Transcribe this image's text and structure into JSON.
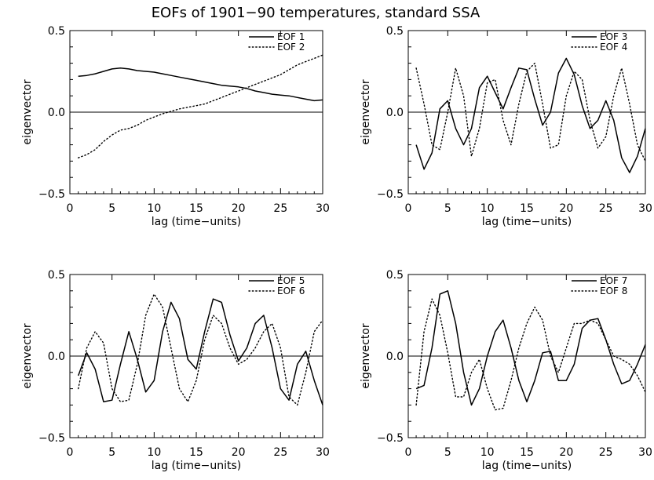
{
  "figure_title": "EOFs of 1901−90 temperatures, standard SSA",
  "chart_data": [
    {
      "type": "line",
      "xlabel": "lag (time−units)",
      "ylabel": "eigenvector",
      "xlim": [
        0,
        30
      ],
      "ylim": [
        -0.5,
        0.5
      ],
      "xticks": [
        "0",
        "5",
        "10",
        "15",
        "20",
        "25",
        "30"
      ],
      "yticks": [
        "0.5",
        "0.0",
        "−0.5"
      ],
      "zero_line": true,
      "legend_position": "top-right",
      "x": [
        1,
        2,
        3,
        4,
        5,
        6,
        7,
        8,
        9,
        10,
        11,
        12,
        13,
        14,
        15,
        16,
        17,
        18,
        19,
        20,
        21,
        22,
        23,
        24,
        25,
        26,
        27,
        28,
        29,
        30
      ],
      "series": [
        {
          "name": "EOF 1",
          "style": "solid",
          "values": [
            0.22,
            0.225,
            0.235,
            0.25,
            0.265,
            0.27,
            0.265,
            0.255,
            0.25,
            0.245,
            0.235,
            0.225,
            0.215,
            0.205,
            0.195,
            0.185,
            0.175,
            0.165,
            0.16,
            0.155,
            0.145,
            0.13,
            0.12,
            0.11,
            0.105,
            0.1,
            0.09,
            0.08,
            0.07,
            0.075
          ]
        },
        {
          "name": "EOF 2",
          "style": "dotted",
          "values": [
            -0.28,
            -0.26,
            -0.23,
            -0.18,
            -0.14,
            -0.11,
            -0.1,
            -0.08,
            -0.05,
            -0.03,
            -0.01,
            0.005,
            0.02,
            0.03,
            0.04,
            0.05,
            0.07,
            0.09,
            0.11,
            0.13,
            0.15,
            0.17,
            0.19,
            0.21,
            0.23,
            0.26,
            0.29,
            0.31,
            0.33,
            0.35
          ]
        }
      ]
    },
    {
      "type": "line",
      "xlabel": "lag (time−units)",
      "ylabel": "eigenvector",
      "xlim": [
        0,
        30
      ],
      "ylim": [
        -0.5,
        0.5
      ],
      "xticks": [
        "0",
        "5",
        "10",
        "15",
        "20",
        "25",
        "30"
      ],
      "yticks": [
        "0.5",
        "0.0",
        "−0.5"
      ],
      "zero_line": true,
      "legend_position": "top-right",
      "x": [
        1,
        2,
        3,
        4,
        5,
        6,
        7,
        8,
        9,
        10,
        11,
        12,
        13,
        14,
        15,
        16,
        17,
        18,
        19,
        20,
        21,
        22,
        23,
        24,
        25,
        26,
        27,
        28,
        29,
        30
      ],
      "series": [
        {
          "name": "EOF 3",
          "style": "solid",
          "values": [
            -0.2,
            -0.35,
            -0.25,
            0.02,
            0.07,
            -0.1,
            -0.2,
            -0.1,
            0.15,
            0.22,
            0.12,
            0.02,
            0.15,
            0.27,
            0.26,
            0.08,
            -0.08,
            0.0,
            0.24,
            0.33,
            0.23,
            0.04,
            -0.1,
            -0.05,
            0.07,
            -0.05,
            -0.28,
            -0.37,
            -0.27,
            -0.1
          ]
        },
        {
          "name": "EOF 4",
          "style": "dotted",
          "values": [
            0.27,
            0.05,
            -0.2,
            -0.23,
            0.0,
            0.27,
            0.1,
            -0.27,
            -0.1,
            0.18,
            0.2,
            -0.05,
            -0.2,
            0.05,
            0.25,
            0.3,
            0.05,
            -0.22,
            -0.2,
            0.1,
            0.25,
            0.2,
            -0.05,
            -0.22,
            -0.15,
            0.1,
            0.27,
            0.05,
            -0.2,
            -0.3
          ]
        }
      ]
    },
    {
      "type": "line",
      "xlabel": "lag (time−units)",
      "ylabel": "eigenvector",
      "xlim": [
        0,
        30
      ],
      "ylim": [
        -0.5,
        0.5
      ],
      "xticks": [
        "0",
        "5",
        "10",
        "15",
        "20",
        "25",
        "30"
      ],
      "yticks": [
        "0.5",
        "0.0",
        "−0.5"
      ],
      "zero_line": true,
      "legend_position": "top-right",
      "x": [
        1,
        2,
        3,
        4,
        5,
        6,
        7,
        8,
        9,
        10,
        11,
        12,
        13,
        14,
        15,
        16,
        17,
        18,
        19,
        20,
        21,
        22,
        23,
        24,
        25,
        26,
        27,
        28,
        29,
        30
      ],
      "series": [
        {
          "name": "EOF 5",
          "style": "solid",
          "values": [
            -0.12,
            0.02,
            -0.08,
            -0.28,
            -0.27,
            -0.05,
            0.15,
            -0.02,
            -0.22,
            -0.15,
            0.15,
            0.33,
            0.23,
            -0.02,
            -0.08,
            0.15,
            0.35,
            0.33,
            0.13,
            -0.03,
            0.05,
            0.2,
            0.25,
            0.05,
            -0.2,
            -0.27,
            -0.05,
            0.03,
            -0.15,
            -0.3
          ]
        },
        {
          "name": "EOF 6",
          "style": "dotted",
          "values": [
            -0.2,
            0.05,
            0.15,
            0.08,
            -0.2,
            -0.28,
            -0.27,
            -0.05,
            0.25,
            0.38,
            0.3,
            0.05,
            -0.2,
            -0.28,
            -0.15,
            0.1,
            0.25,
            0.2,
            0.05,
            -0.05,
            -0.02,
            0.05,
            0.15,
            0.2,
            0.05,
            -0.25,
            -0.3,
            -0.1,
            0.15,
            0.22
          ]
        }
      ]
    },
    {
      "type": "line",
      "xlabel": "lag (time−units)",
      "ylabel": "eigenvector",
      "xlim": [
        0,
        30
      ],
      "ylim": [
        -0.5,
        0.5
      ],
      "xticks": [
        "0",
        "5",
        "10",
        "15",
        "20",
        "25",
        "30"
      ],
      "yticks": [
        "0.5",
        "0.0",
        "−0.5"
      ],
      "zero_line": true,
      "legend_position": "top-right",
      "x": [
        1,
        2,
        3,
        4,
        5,
        6,
        7,
        8,
        9,
        10,
        11,
        12,
        13,
        14,
        15,
        16,
        17,
        18,
        19,
        20,
        21,
        22,
        23,
        24,
        25,
        26,
        27,
        28,
        29,
        30
      ],
      "series": [
        {
          "name": "EOF 7",
          "style": "solid",
          "values": [
            -0.2,
            -0.18,
            0.05,
            0.38,
            0.4,
            0.2,
            -0.1,
            -0.3,
            -0.2,
            0.0,
            0.15,
            0.22,
            0.05,
            -0.15,
            -0.28,
            -0.15,
            0.02,
            0.03,
            -0.15,
            -0.15,
            -0.05,
            0.17,
            0.22,
            0.23,
            0.1,
            -0.05,
            -0.17,
            -0.15,
            -0.05,
            0.07
          ]
        },
        {
          "name": "EOF 8",
          "style": "dotted",
          "values": [
            -0.3,
            0.15,
            0.35,
            0.25,
            0.02,
            -0.25,
            -0.25,
            -0.1,
            -0.02,
            -0.2,
            -0.33,
            -0.32,
            -0.15,
            0.05,
            0.2,
            0.3,
            0.22,
            0.0,
            -0.1,
            0.05,
            0.2,
            0.2,
            0.22,
            0.2,
            0.1,
            0.0,
            -0.02,
            -0.05,
            -0.12,
            -0.22
          ]
        }
      ]
    }
  ]
}
